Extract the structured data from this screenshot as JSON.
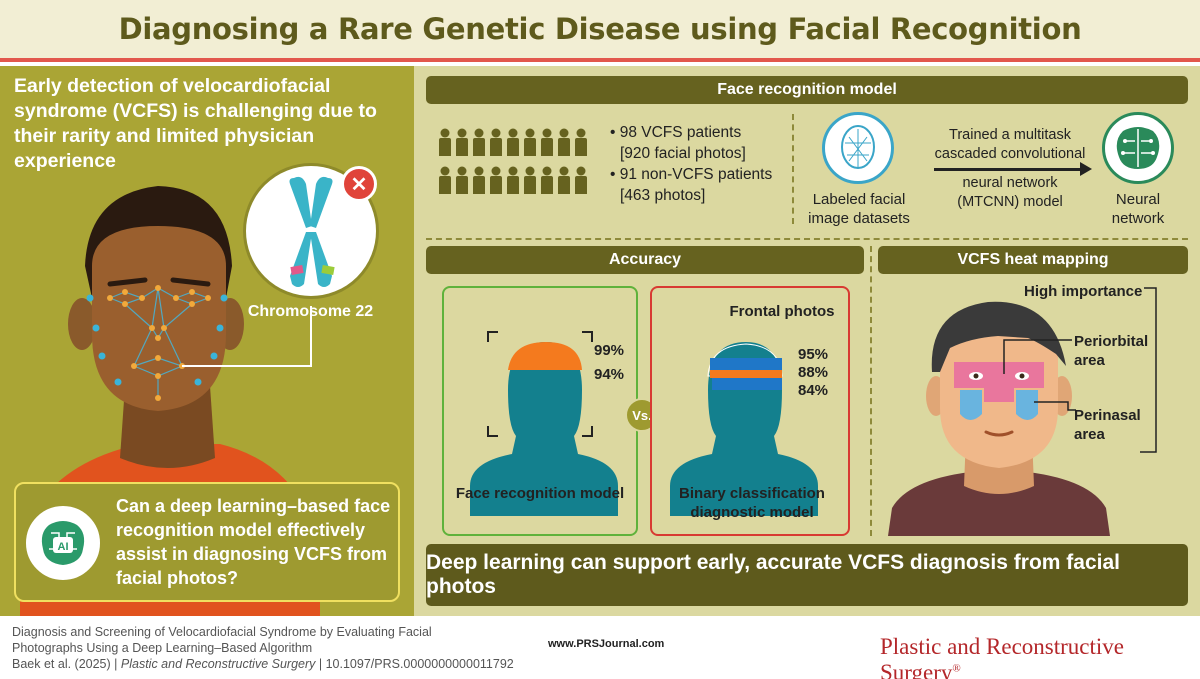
{
  "title": "Diagnosing a Rare Genetic Disease using Facial Recognition",
  "left": {
    "intro": "Early detection of velocardiofacial syndrome (VCFS) is challenging due to their rarity and limited physician experience",
    "chromosome_label": "Chromosome 22",
    "question": "Can a deep learning–based face recognition model effectively assist in diagnosing VCFS from facial photos?",
    "ai_badge": "AI"
  },
  "model_section": {
    "header": "Face recognition model",
    "bullets": [
      "• 98 VCFS patients",
      "[920 facial photos]",
      "• 91 non-VCFS patients",
      "[463 photos]"
    ],
    "labeled_text": "Labeled facial image datasets",
    "trained_text": "Trained a multitask cascaded convolutional",
    "mtcnn_text": "neural network (MTCNN) model",
    "neural_text": "Neural network"
  },
  "accuracy": {
    "header": "Accuracy",
    "face_model": {
      "label": "Face recognition model",
      "values": [
        "99%",
        "94%"
      ]
    },
    "vs": "Vs.",
    "binary_model": {
      "label": "Binary classification diagnostic model",
      "sub": "Frontal photos",
      "values": [
        "95%",
        "88%",
        "84%"
      ]
    }
  },
  "heatmap": {
    "header": "VCFS heat mapping",
    "high": "High importance",
    "periorbital": "Periorbital area",
    "perinasal": "Perinasal area"
  },
  "conclusion": "Deep learning can support early, accurate VCFS diagnosis from facial photos",
  "footer": {
    "cite_line1": "Diagnosis and Screening of Velocardiofacial Syndrome by Evaluating Facial",
    "cite_line2": "Photographs Using a Deep Learning–Based Algorithm",
    "cite_line3a": "Baek et al. (2025) | ",
    "cite_line3b": "Plastic and Reconstructive Surgery",
    "cite_line3c": " | 10.1097/PRS.0000000000011792",
    "url": "www.PRSJournal.com",
    "journal": "Plastic and Reconstructive Surgery",
    "journal_mark": "®"
  },
  "colors": {
    "olive_dark": "#5e5a1c",
    "olive": "#aaa535",
    "panel": "#dbd8a0",
    "accent_red": "#e2574c",
    "teal": "#13808e",
    "orange": "#f47a1e",
    "blue": "#1f77c8"
  }
}
